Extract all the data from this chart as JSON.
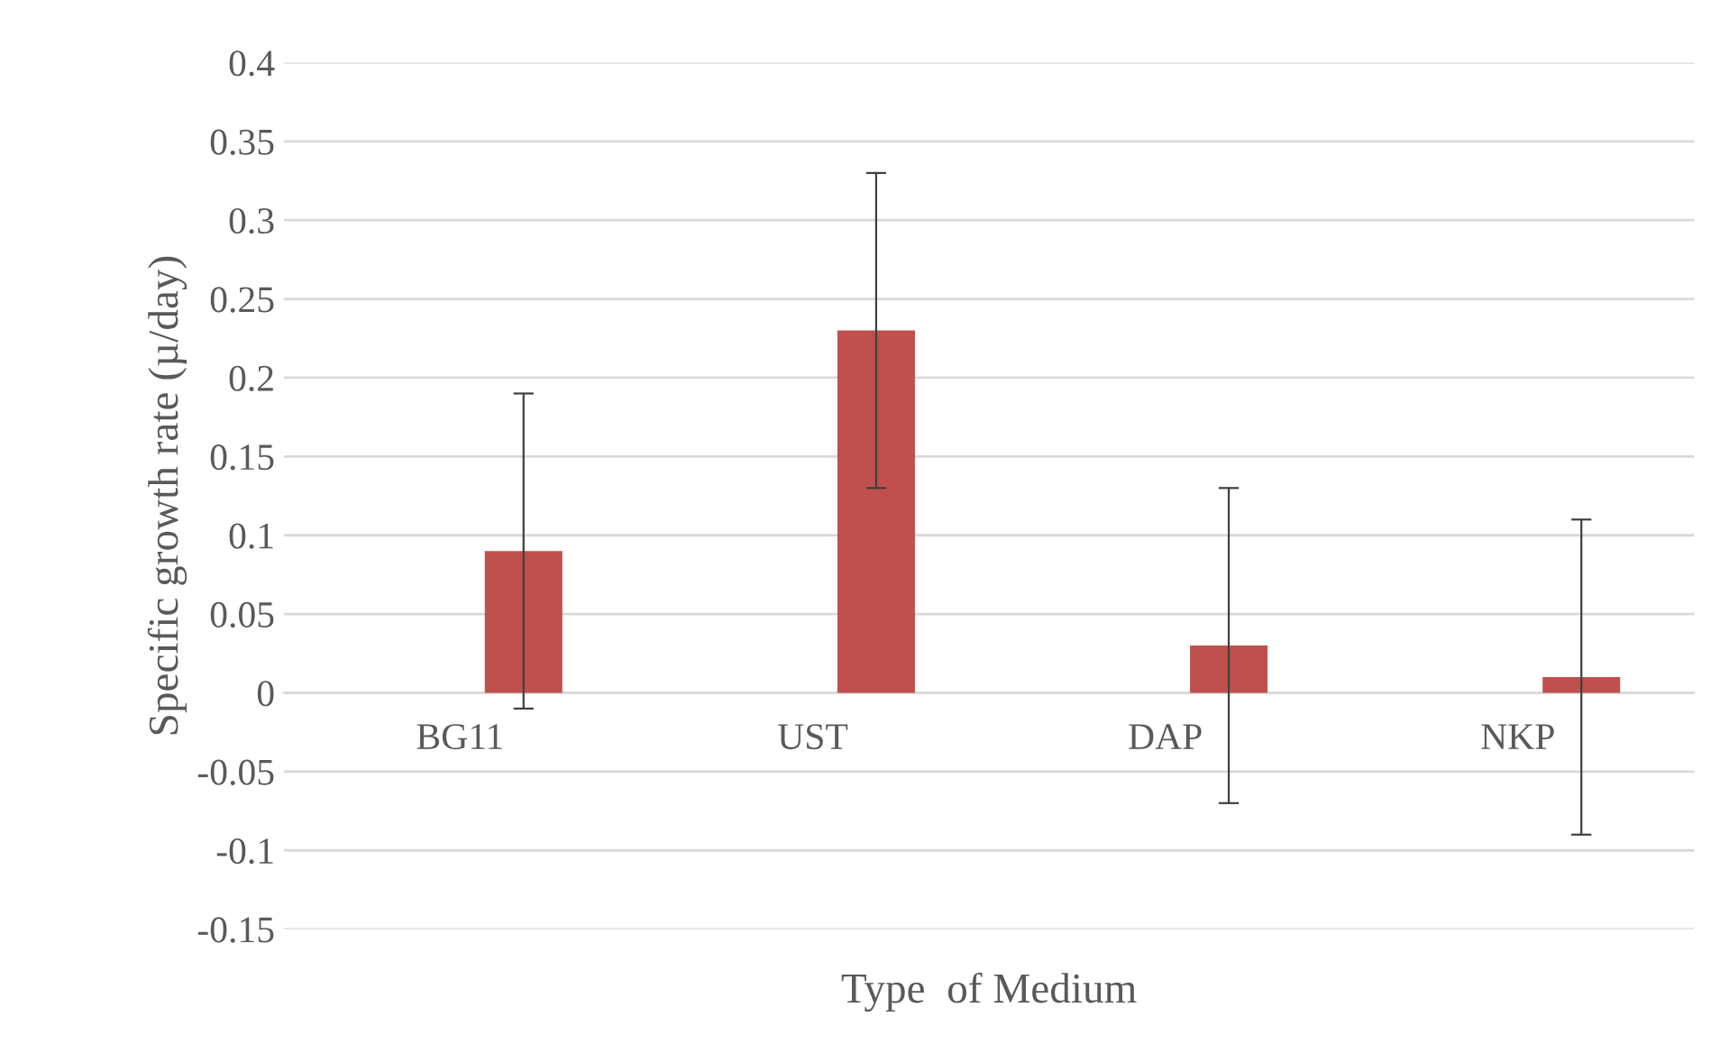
{
  "chart_data": {
    "type": "bar",
    "xlabel": "Type  of Medium",
    "ylabel": "Specific growth rate (µ/day)",
    "categories": [
      "BG11",
      "UST",
      "DAP",
      "NKP"
    ],
    "values": [
      0.09,
      0.23,
      0.03,
      0.01
    ],
    "errors": [
      0.1,
      0.1,
      0.1,
      0.1
    ],
    "color": "#c0504d",
    "ylim": [
      -0.15,
      0.4
    ],
    "yticks": [
      -0.15,
      -0.1,
      -0.05,
      0,
      0.05,
      0.1,
      0.15,
      0.2,
      0.25,
      0.3,
      0.35,
      0.4
    ],
    "grid": "y"
  }
}
